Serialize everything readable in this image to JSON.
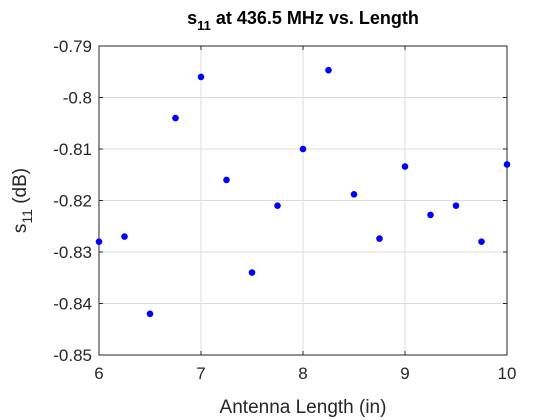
{
  "chart_data": {
    "type": "scatter",
    "title_main": "s",
    "title_sub": "11",
    "title_rest": " at 436.5 MHz vs. Length",
    "xlabel": "Antenna Length (in)",
    "ylabel_main": "s",
    "ylabel_sub": "11",
    "ylabel_rest": " (dB)",
    "xlim": [
      6,
      10
    ],
    "ylim": [
      -0.85,
      -0.79
    ],
    "xticks": [
      6,
      7,
      8,
      9,
      10
    ],
    "xtick_labels": [
      "6",
      "7",
      "8",
      "9",
      "10"
    ],
    "yticks": [
      -0.85,
      -0.84,
      -0.83,
      -0.82,
      -0.81,
      -0.8,
      -0.79
    ],
    "ytick_labels": [
      "-0.85",
      "-0.84",
      "-0.83",
      "-0.82",
      "-0.81",
      "-0.8",
      "-0.79"
    ],
    "grid": true,
    "marker_color": "#0000ff",
    "points": [
      {
        "x": 6.0,
        "y": -0.828
      },
      {
        "x": 6.25,
        "y": -0.827
      },
      {
        "x": 6.5,
        "y": -0.842
      },
      {
        "x": 6.75,
        "y": -0.804
      },
      {
        "x": 7.0,
        "y": -0.796
      },
      {
        "x": 7.25,
        "y": -0.816
      },
      {
        "x": 7.5,
        "y": -0.834
      },
      {
        "x": 7.75,
        "y": -0.821
      },
      {
        "x": 8.0,
        "y": -0.81
      },
      {
        "x": 8.25,
        "y": -0.7947
      },
      {
        "x": 8.5,
        "y": -0.8188
      },
      {
        "x": 8.75,
        "y": -0.8274
      },
      {
        "x": 9.0,
        "y": -0.8134
      },
      {
        "x": 9.25,
        "y": -0.8228
      },
      {
        "x": 9.5,
        "y": -0.821
      },
      {
        "x": 9.75,
        "y": -0.828
      },
      {
        "x": 10.0,
        "y": -0.813
      }
    ]
  }
}
